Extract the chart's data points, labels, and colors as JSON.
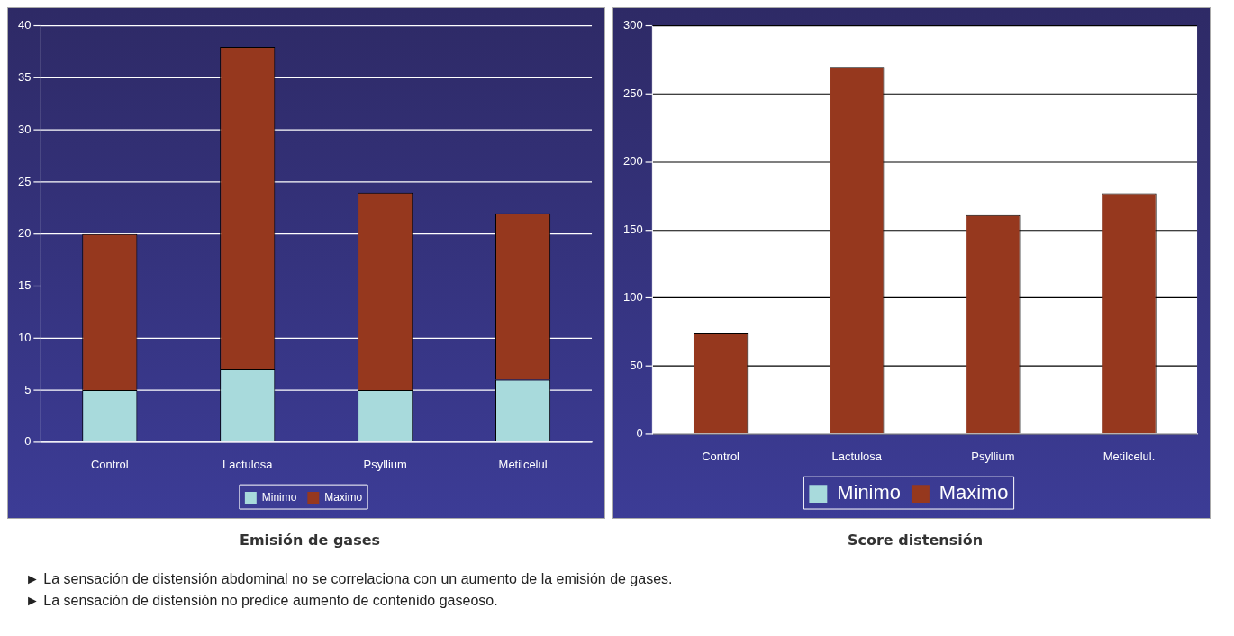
{
  "chart_data": [
    {
      "type": "bar",
      "title": "Emisión de gases",
      "categories": [
        "Control",
        "Lactulosa",
        "Psyllium",
        "Metilcelul"
      ],
      "stacked": true,
      "series": [
        {
          "name": "Minimo",
          "color": "#a8dadc",
          "values": [
            5,
            7,
            5,
            6
          ]
        },
        {
          "name": "Maximo",
          "color": "#96381e",
          "values": [
            15,
            31,
            19,
            16
          ]
        }
      ],
      "ylim": [
        0,
        40
      ],
      "yticks": [
        0,
        5,
        10,
        15,
        20,
        25,
        30,
        35,
        40
      ],
      "grid": "y",
      "legend": "bottom"
    },
    {
      "type": "bar",
      "title": "Score distensión",
      "categories": [
        "Control",
        "Lactulosa",
        "Psyllium",
        "Metilcelul."
      ],
      "stacked": true,
      "series": [
        {
          "name": "Minimo",
          "color": "#a8dadc",
          "values": [
            0,
            0,
            0,
            0
          ]
        },
        {
          "name": "Maximo",
          "color": "#96381e",
          "values": [
            74,
            270,
            161,
            177
          ]
        }
      ],
      "ylim": [
        0,
        300
      ],
      "yticks": [
        0,
        50,
        100,
        150,
        200,
        250,
        300
      ],
      "grid": "y",
      "legend": "bottom",
      "annotations": [
        "► La sensación de distensión abdominal no se correlaciona con un aumento de la emisión de gases.",
        "► La sensación de distensión no predice aumento de contenido gaseoso."
      ]
    }
  ]
}
